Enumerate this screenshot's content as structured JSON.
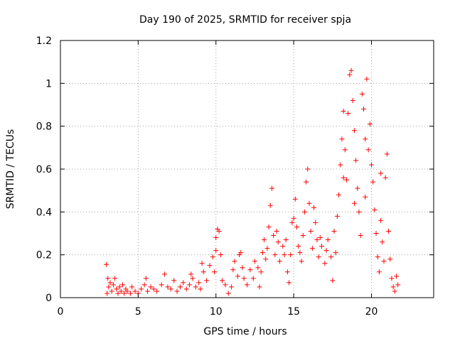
{
  "chart_data": {
    "type": "scatter",
    "title": "Day 190 of 2025, SRMTID for receiver spja",
    "xlabel": "GPS time / hours",
    "ylabel": "SRMTID / TECUs",
    "xlim": [
      0,
      24
    ],
    "ylim": [
      0,
      1.2
    ],
    "xticks": [
      0,
      5,
      10,
      15,
      20
    ],
    "xtick_labels": [
      "0",
      "5",
      "10",
      "15",
      "20"
    ],
    "yticks": [
      0,
      0.2,
      0.4,
      0.6,
      0.8,
      1.0,
      1.2
    ],
    "ytick_labels": [
      "0",
      "0.2",
      "0.4",
      "0.6",
      "0.8",
      "1",
      "1.2"
    ],
    "grid": true,
    "marker": "+",
    "series_color": "#ff0000",
    "series": [
      {
        "name": "SRMTID",
        "points": [
          [
            2.95,
            0.155
          ],
          [
            3.0,
            0.02
          ],
          [
            3.05,
            0.09
          ],
          [
            3.1,
            0.05
          ],
          [
            3.2,
            0.07
          ],
          [
            3.3,
            0.03
          ],
          [
            3.4,
            0.06
          ],
          [
            3.5,
            0.09
          ],
          [
            3.6,
            0.04
          ],
          [
            3.7,
            0.02
          ],
          [
            3.8,
            0.05
          ],
          [
            3.9,
            0.03
          ],
          [
            4.0,
            0.06
          ],
          [
            4.1,
            0.02
          ],
          [
            4.2,
            0.04
          ],
          [
            4.3,
            0.03
          ],
          [
            4.5,
            0.02
          ],
          [
            4.6,
            0.05
          ],
          [
            4.8,
            0.03
          ],
          [
            5.0,
            0.02
          ],
          [
            5.2,
            0.04
          ],
          [
            5.4,
            0.06
          ],
          [
            5.5,
            0.09
          ],
          [
            5.6,
            0.03
          ],
          [
            5.8,
            0.05
          ],
          [
            6.0,
            0.04
          ],
          [
            6.2,
            0.03
          ],
          [
            6.5,
            0.06
          ],
          [
            6.7,
            0.11
          ],
          [
            6.9,
            0.05
          ],
          [
            7.1,
            0.04
          ],
          [
            7.3,
            0.08
          ],
          [
            7.5,
            0.03
          ],
          [
            7.7,
            0.05
          ],
          [
            7.9,
            0.07
          ],
          [
            8.1,
            0.04
          ],
          [
            8.3,
            0.06
          ],
          [
            8.5,
            0.09
          ],
          [
            8.7,
            0.05
          ],
          [
            8.9,
            0.07
          ],
          [
            9.0,
            0.04
          ],
          [
            9.2,
            0.12
          ],
          [
            9.4,
            0.08
          ],
          [
            9.6,
            0.15
          ],
          [
            9.8,
            0.19
          ],
          [
            9.9,
            0.12
          ],
          [
            10.0,
            0.22
          ],
          [
            10.1,
            0.32
          ],
          [
            10.2,
            0.31
          ],
          [
            10.3,
            0.2
          ],
          [
            10.4,
            0.08
          ],
          [
            10.6,
            0.06
          ],
          [
            10.8,
            0.02
          ],
          [
            11.0,
            0.05
          ],
          [
            11.1,
            0.13
          ],
          [
            11.2,
            0.17
          ],
          [
            11.4,
            0.1
          ],
          [
            11.5,
            0.2
          ],
          [
            11.7,
            0.14
          ],
          [
            11.8,
            0.09
          ],
          [
            12.0,
            0.06
          ],
          [
            12.2,
            0.13
          ],
          [
            12.4,
            0.09
          ],
          [
            12.5,
            0.17
          ],
          [
            12.7,
            0.14
          ],
          [
            12.8,
            0.05
          ],
          [
            13.0,
            0.21
          ],
          [
            13.1,
            0.27
          ],
          [
            13.2,
            0.18
          ],
          [
            13.3,
            0.23
          ],
          [
            13.4,
            0.33
          ],
          [
            13.5,
            0.43
          ],
          [
            13.6,
            0.51
          ],
          [
            13.7,
            0.29
          ],
          [
            13.8,
            0.2
          ],
          [
            14.0,
            0.26
          ],
          [
            14.1,
            0.17
          ],
          [
            14.3,
            0.24
          ],
          [
            14.4,
            0.2
          ],
          [
            14.5,
            0.27
          ],
          [
            14.6,
            0.12
          ],
          [
            14.7,
            0.07
          ],
          [
            14.8,
            0.2
          ],
          [
            15.0,
            0.37
          ],
          [
            15.1,
            0.46
          ],
          [
            15.2,
            0.33
          ],
          [
            15.3,
            0.24
          ],
          [
            15.5,
            0.17
          ],
          [
            15.6,
            0.29
          ],
          [
            15.7,
            0.4
          ],
          [
            15.8,
            0.54
          ],
          [
            15.9,
            0.6
          ],
          [
            16.0,
            0.44
          ],
          [
            16.1,
            0.31
          ],
          [
            16.2,
            0.23
          ],
          [
            16.4,
            0.35
          ],
          [
            16.5,
            0.27
          ],
          [
            16.6,
            0.19
          ],
          [
            16.8,
            0.24
          ],
          [
            17.0,
            0.16
          ],
          [
            17.2,
            0.27
          ],
          [
            17.4,
            0.19
          ],
          [
            17.5,
            0.08
          ],
          [
            17.6,
            0.31
          ],
          [
            17.7,
            0.21
          ],
          [
            17.8,
            0.38
          ],
          [
            17.9,
            0.48
          ],
          [
            18.0,
            0.62
          ],
          [
            18.1,
            0.74
          ],
          [
            18.2,
            0.87
          ],
          [
            18.3,
            0.69
          ],
          [
            18.4,
            0.55
          ],
          [
            18.5,
            0.86
          ],
          [
            18.6,
            1.04
          ],
          [
            18.7,
            1.06
          ],
          [
            18.8,
            0.92
          ],
          [
            18.9,
            0.78
          ],
          [
            19.0,
            0.64
          ],
          [
            19.1,
            0.51
          ],
          [
            19.2,
            0.4
          ],
          [
            19.3,
            0.29
          ],
          [
            19.4,
            0.95
          ],
          [
            19.5,
            0.88
          ],
          [
            19.6,
            0.74
          ],
          [
            19.7,
            1.02
          ],
          [
            19.8,
            0.69
          ],
          [
            19.9,
            0.81
          ],
          [
            20.0,
            0.62
          ],
          [
            20.1,
            0.54
          ],
          [
            20.2,
            0.41
          ],
          [
            20.3,
            0.3
          ],
          [
            20.4,
            0.19
          ],
          [
            20.5,
            0.12
          ],
          [
            20.6,
            0.36
          ],
          [
            20.7,
            0.26
          ],
          [
            20.8,
            0.17
          ],
          [
            20.9,
            0.56
          ],
          [
            21.0,
            0.67
          ],
          [
            21.1,
            0.31
          ],
          [
            21.2,
            0.18
          ],
          [
            21.3,
            0.09
          ],
          [
            21.4,
            0.05
          ],
          [
            21.5,
            0.03
          ],
          [
            21.6,
            0.1
          ],
          [
            21.7,
            0.06
          ],
          [
            8.4,
            0.11
          ],
          [
            9.1,
            0.16
          ],
          [
            10.0,
            0.28
          ],
          [
            11.6,
            0.21
          ],
          [
            12.9,
            0.12
          ],
          [
            13.9,
            0.31
          ],
          [
            14.9,
            0.35
          ],
          [
            16.3,
            0.42
          ],
          [
            17.1,
            0.22
          ],
          [
            18.9,
            0.44
          ],
          [
            19.6,
            0.47
          ],
          [
            20.6,
            0.58
          ],
          [
            18.2,
            0.56
          ],
          [
            16.7,
            0.28
          ],
          [
            15.4,
            0.21
          ]
        ]
      }
    ]
  }
}
